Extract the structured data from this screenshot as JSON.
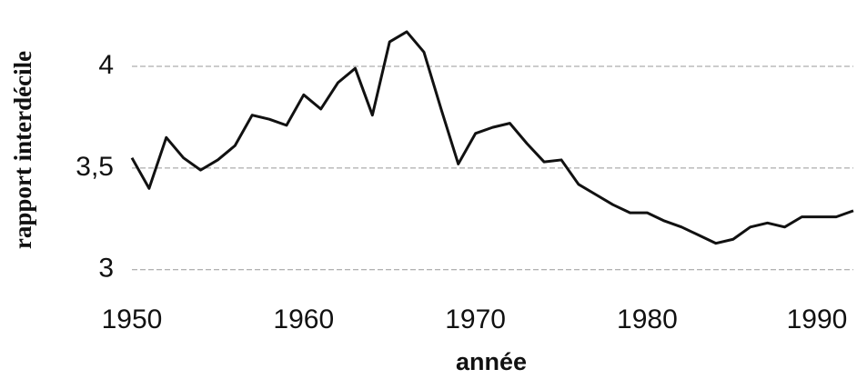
{
  "chart_data": {
    "type": "line",
    "xlabel": "année",
    "ylabel": "rapport interdécile",
    "x": [
      1950,
      1951,
      1952,
      1953,
      1954,
      1955,
      1956,
      1957,
      1958,
      1959,
      1960,
      1961,
      1962,
      1963,
      1964,
      1965,
      1966,
      1967,
      1968,
      1969,
      1970,
      1971,
      1972,
      1973,
      1974,
      1975,
      1976,
      1977,
      1978,
      1979,
      1980,
      1981,
      1982,
      1983,
      1984,
      1985,
      1986,
      1987,
      1988,
      1989,
      1990,
      1991,
      1992
    ],
    "series": [
      {
        "color": "#111111",
        "values": [
          3.55,
          3.4,
          3.65,
          3.55,
          3.49,
          3.54,
          3.61,
          3.76,
          3.74,
          3.71,
          3.86,
          3.79,
          3.92,
          3.99,
          3.76,
          4.12,
          4.17,
          4.07,
          3.79,
          3.52,
          3.67,
          3.7,
          3.72,
          3.62,
          3.53,
          3.54,
          3.42,
          3.37,
          3.32,
          3.28,
          3.28,
          3.24,
          3.21,
          3.17,
          3.13,
          3.15,
          3.21,
          3.23,
          3.21,
          3.26,
          3.26,
          3.26,
          3.29
        ]
      }
    ],
    "xlim": [
      1950,
      1992
    ],
    "xticks": [
      1950,
      1960,
      1970,
      1980,
      1990
    ],
    "ylim": [
      2.95,
      4.25
    ],
    "yticks": [
      3,
      {
        "value": 3.5,
        "label": "3,5"
      },
      4
    ],
    "grid": true
  }
}
